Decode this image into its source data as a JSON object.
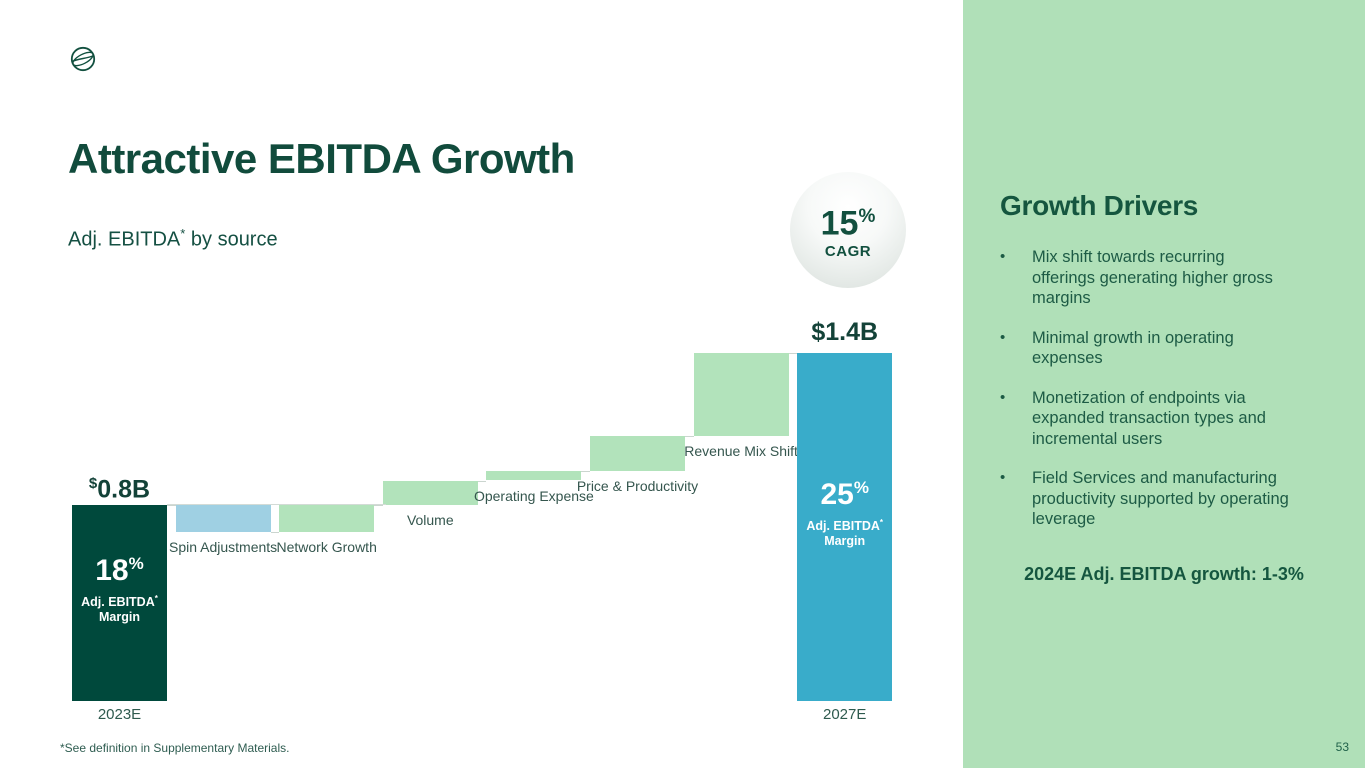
{
  "header": {
    "title": "Attractive EBITDA Growth",
    "subtitle": {
      "pre": "Adj. EBITDA",
      "sup": "*",
      "post": " by source"
    }
  },
  "cagr_badge": {
    "value": "15",
    "unit": "%",
    "label": "CAGR"
  },
  "chart_data": {
    "type": "waterfall",
    "title": "Adj. EBITDA by source",
    "unit": "$B",
    "ylim": [
      0,
      1.42
    ],
    "start_level_reference": 0.8,
    "bars": [
      {
        "kind": "total",
        "label": "2023E",
        "currency": "$",
        "amount": "0.8B",
        "currency_superscript": true,
        "from": 0,
        "to": 0.8,
        "color": "#00493C",
        "margin": {
          "value": "18",
          "unit": "%",
          "line1": "Adj. EBITDA",
          "sup": "*",
          "line2": "Margin"
        }
      },
      {
        "kind": "step",
        "label": "Spin Adjustments",
        "from": 0.8,
        "to": 0.69,
        "delta": -0.11,
        "color": "#9FD0E3"
      },
      {
        "kind": "step",
        "label": "Network Growth",
        "from": 0.69,
        "to": 0.8,
        "delta": 0.11,
        "color": "#B2E3BB"
      },
      {
        "kind": "step",
        "label": "Volume",
        "from": 0.8,
        "to": 0.9,
        "delta": 0.1,
        "color": "#B2E3BB"
      },
      {
        "kind": "step",
        "label": "Operating Expense",
        "from": 0.9,
        "to": 0.94,
        "delta": 0.04,
        "color": "#B2E3BB"
      },
      {
        "kind": "step",
        "label": "Price & Productivity",
        "from": 0.94,
        "to": 1.08,
        "delta": 0.14,
        "color": "#B2E3BB"
      },
      {
        "kind": "step",
        "label": "Revenue Mix Shift",
        "from": 1.08,
        "to": 1.42,
        "delta": 0.34,
        "color": "#B2E3BB"
      },
      {
        "kind": "total",
        "label": "2027E",
        "currency": "$",
        "amount": "1.4B",
        "currency_superscript": false,
        "from": 0,
        "to": 1.42,
        "color": "#39ACCA",
        "margin": {
          "value": "25",
          "unit": "%",
          "line1": "Adj. EBITDA",
          "sup": "*",
          "line2": "Margin"
        }
      }
    ]
  },
  "sidebar": {
    "heading": "Growth Drivers",
    "bullet_glyph": "•",
    "bullets": [
      "Mix shift towards recurring offerings generating higher gross margins",
      "Minimal growth in operating expenses",
      "Monetization of endpoints via expanded transaction types and incremental users",
      "Field Services and manufacturing productivity supported by operating leverage"
    ],
    "highlight": "2024E Adj. EBITDA growth: 1-3%"
  },
  "footer": {
    "footnote": "*See definition in Supplementary Materials.",
    "page_number": "53"
  },
  "colors": {
    "dark_green": "#114B3C",
    "bar_dark_green": "#00493C",
    "bar_light_blue": "#9FD0E3",
    "bar_light_green": "#B2E3BB",
    "bar_teal": "#39ACCA",
    "sidebar_bg": "#B0E0B8",
    "sidebar_text": "#1D5B45"
  }
}
